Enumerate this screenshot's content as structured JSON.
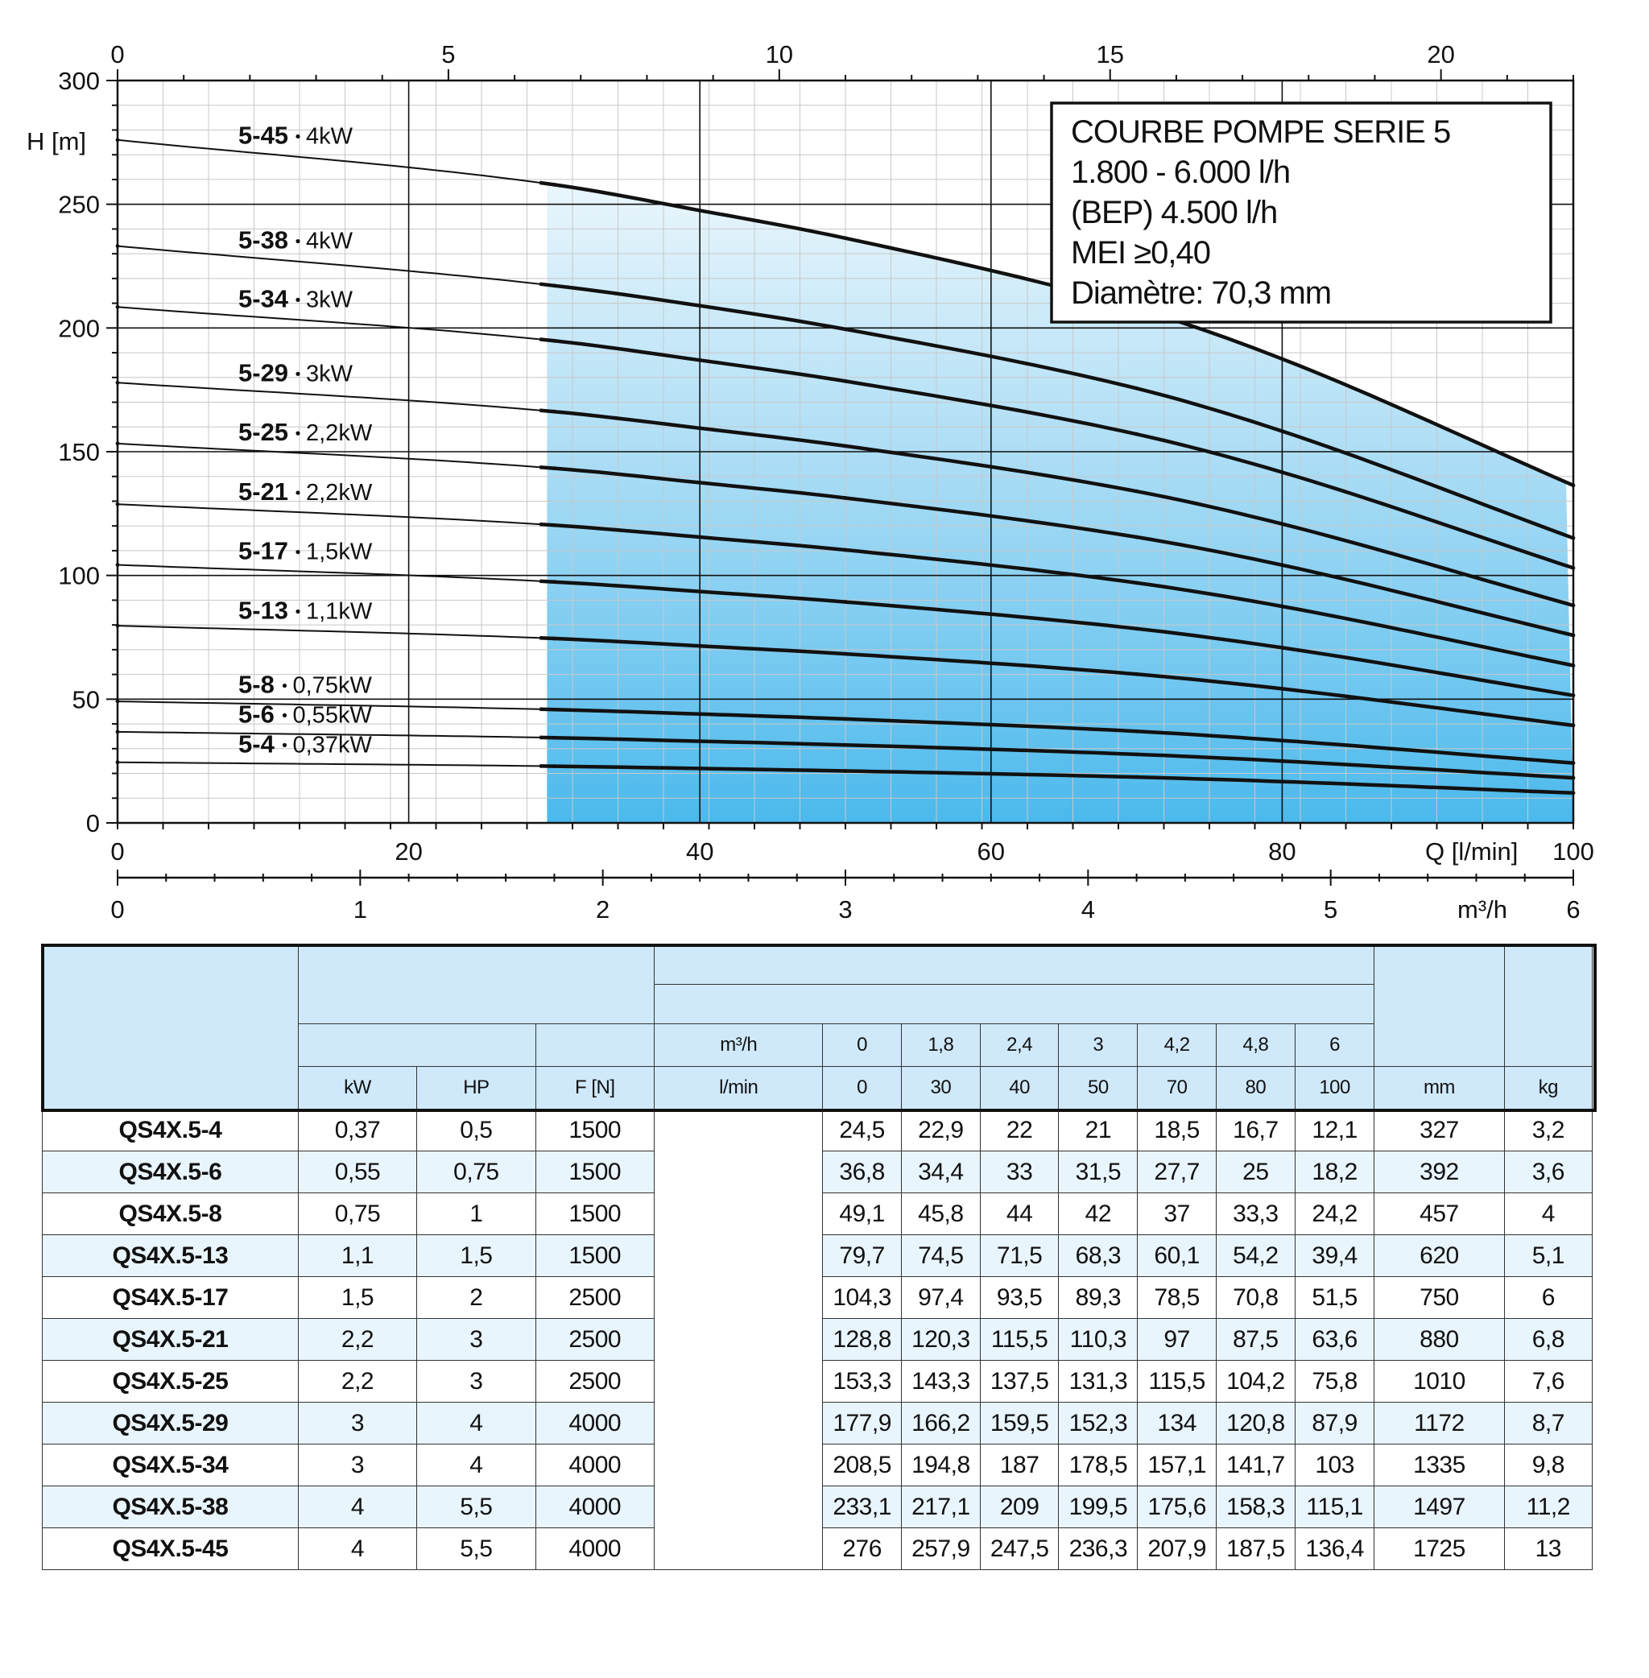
{
  "chart_data": {
    "type": "line",
    "ylabel": "H [m]",
    "xlabel": "Q [l/min]",
    "x2label": "m³/h",
    "xlim": [
      0,
      100
    ],
    "ylim": [
      0,
      300
    ],
    "x_ticks": [
      "0",
      "20",
      "40",
      "60",
      "80",
      "100"
    ],
    "y_ticks": [
      "0",
      "50",
      "100",
      "150",
      "200",
      "250",
      "300"
    ],
    "top_ticks": [
      "0",
      "5",
      "10",
      "15",
      "20"
    ],
    "m3h_ticks": [
      "0",
      "1",
      "2",
      "3",
      "4",
      "5",
      "6"
    ],
    "grid": true,
    "operating_range_start_lmin": 29.5,
    "fill_colors": {
      "light": "#e4f3fb",
      "dark": "#4bb9ec"
    },
    "info_box": [
      "COURBE POMPE SERIE 5",
      "1.800 - 6.000 l/h",
      "(BEP) 4.500 l/h",
      "MEI ≥0,40",
      "Diamètre: 70,3 mm"
    ],
    "x": [
      0,
      30,
      40,
      50,
      70,
      80,
      100
    ],
    "series": [
      {
        "name": "5-45",
        "power": "4kW",
        "values": [
          276,
          257.9,
          247.5,
          236.3,
          207.9,
          187.5,
          136.4
        ]
      },
      {
        "name": "5-38",
        "power": "4kW",
        "values": [
          233.1,
          217.1,
          209,
          199.5,
          175.6,
          158.3,
          115.1
        ]
      },
      {
        "name": "5-34",
        "power": "3kW",
        "values": [
          208.5,
          194.8,
          187,
          178.5,
          157.1,
          141.7,
          103
        ]
      },
      {
        "name": "5-29",
        "power": "3kW",
        "values": [
          177.9,
          166.2,
          159.5,
          152.3,
          134,
          120.8,
          87.9
        ]
      },
      {
        "name": "5-25",
        "power": "2,2kW",
        "values": [
          153.3,
          143.3,
          137.5,
          131.3,
          115.5,
          104.2,
          75.8
        ]
      },
      {
        "name": "5-21",
        "power": "2,2kW",
        "values": [
          128.8,
          120.3,
          115.5,
          110.3,
          97,
          87.5,
          63.6
        ]
      },
      {
        "name": "5-17",
        "power": "1,5kW",
        "values": [
          104.3,
          97.4,
          93.5,
          89.3,
          78.5,
          70.8,
          51.5
        ]
      },
      {
        "name": "5-13",
        "power": "1,1kW",
        "values": [
          79.7,
          74.5,
          71.5,
          68.3,
          60.1,
          54.2,
          39.4
        ]
      },
      {
        "name": "5-8",
        "power": "0,75kW",
        "values": [
          49.1,
          45.8,
          44,
          42,
          37,
          33.3,
          24.2
        ]
      },
      {
        "name": "5-6",
        "power": "0,55kW",
        "values": [
          36.8,
          34.4,
          33,
          31.5,
          27.7,
          25,
          18.2
        ]
      },
      {
        "name": "5-4",
        "power": "0,37kW",
        "values": [
          24.5,
          22.9,
          22,
          21,
          18.5,
          16.7,
          12.1
        ]
      }
    ]
  },
  "table": {
    "units": {
      "kw": "kW",
      "hp": "HP",
      "force": "F [N]",
      "flow_m3h": "m³/h",
      "flow_lmin": "l/min",
      "length": "mm",
      "weight": "kg"
    },
    "flow_m3h": [
      "0",
      "1,8",
      "2,4",
      "3",
      "4,2",
      "4,8",
      "6"
    ],
    "flow_lmin": [
      "0",
      "30",
      "40",
      "50",
      "70",
      "80",
      "100"
    ],
    "rows": [
      {
        "model": "QS4X.5-4",
        "kw": "0,37",
        "hp": "0,5",
        "f": "1500",
        "h": [
          "24,5",
          "22,9",
          "22",
          "21",
          "18,5",
          "16,7",
          "12,1"
        ],
        "mm": "327",
        "kg": "3,2"
      },
      {
        "model": "QS4X.5-6",
        "kw": "0,55",
        "hp": "0,75",
        "f": "1500",
        "h": [
          "36,8",
          "34,4",
          "33",
          "31,5",
          "27,7",
          "25",
          "18,2"
        ],
        "mm": "392",
        "kg": "3,6"
      },
      {
        "model": "QS4X.5-8",
        "kw": "0,75",
        "hp": "1",
        "f": "1500",
        "h": [
          "49,1",
          "45,8",
          "44",
          "42",
          "37",
          "33,3",
          "24,2"
        ],
        "mm": "457",
        "kg": "4"
      },
      {
        "model": "QS4X.5-13",
        "kw": "1,1",
        "hp": "1,5",
        "f": "1500",
        "h": [
          "79,7",
          "74,5",
          "71,5",
          "68,3",
          "60,1",
          "54,2",
          "39,4"
        ],
        "mm": "620",
        "kg": "5,1"
      },
      {
        "model": "QS4X.5-17",
        "kw": "1,5",
        "hp": "2",
        "f": "2500",
        "h": [
          "104,3",
          "97,4",
          "93,5",
          "89,3",
          "78,5",
          "70,8",
          "51,5"
        ],
        "mm": "750",
        "kg": "6"
      },
      {
        "model": "QS4X.5-21",
        "kw": "2,2",
        "hp": "3",
        "f": "2500",
        "h": [
          "128,8",
          "120,3",
          "115,5",
          "110,3",
          "97",
          "87,5",
          "63,6"
        ],
        "mm": "880",
        "kg": "6,8"
      },
      {
        "model": "QS4X.5-25",
        "kw": "2,2",
        "hp": "3",
        "f": "2500",
        "h": [
          "153,3",
          "143,3",
          "137,5",
          "131,3",
          "115,5",
          "104,2",
          "75,8"
        ],
        "mm": "1010",
        "kg": "7,6"
      },
      {
        "model": "QS4X.5-29",
        "kw": "3",
        "hp": "4",
        "f": "4000",
        "h": [
          "177,9",
          "166,2",
          "159,5",
          "152,3",
          "134",
          "120,8",
          "87,9"
        ],
        "mm": "1172",
        "kg": "8,7"
      },
      {
        "model": "QS4X.5-34",
        "kw": "3",
        "hp": "4",
        "f": "4000",
        "h": [
          "208,5",
          "194,8",
          "187",
          "178,5",
          "157,1",
          "141,7",
          "103"
        ],
        "mm": "1335",
        "kg": "9,8"
      },
      {
        "model": "QS4X.5-38",
        "kw": "4",
        "hp": "5,5",
        "f": "4000",
        "h": [
          "233,1",
          "217,1",
          "209",
          "199,5",
          "175,6",
          "158,3",
          "115,1"
        ],
        "mm": "1497",
        "kg": "11,2"
      },
      {
        "model": "QS4X.5-45",
        "kw": "4",
        "hp": "5,5",
        "f": "4000",
        "h": [
          "276",
          "257,9",
          "247,5",
          "236,3",
          "207,9",
          "187,5",
          "136,4"
        ],
        "mm": "1725",
        "kg": "13"
      }
    ]
  }
}
